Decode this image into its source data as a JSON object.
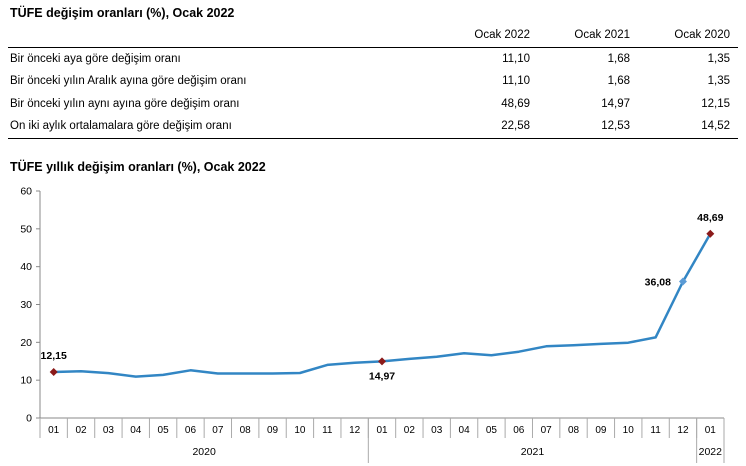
{
  "table": {
    "title": "TÜFE değişim oranları (%), Ocak 2022",
    "columns": [
      "Ocak 2022",
      "Ocak 2021",
      "Ocak 2020"
    ],
    "rows": [
      {
        "label": "Bir önceki aya göre değişim oranı",
        "values": [
          "11,10",
          "1,68",
          "1,35"
        ]
      },
      {
        "label": "Bir önceki yılın Aralık ayına göre değişim oranı",
        "values": [
          "11,10",
          "1,68",
          "1,35"
        ]
      },
      {
        "label": "Bir önceki yılın aynı ayına göre değişim oranı",
        "values": [
          "48,69",
          "14,97",
          "12,15"
        ]
      },
      {
        "label": "On iki aylık ortalamalara göre değişim oranı",
        "values": [
          "22,58",
          "12,53",
          "14,52"
        ]
      }
    ]
  },
  "chart_data": {
    "type": "line",
    "title": "TÜFE yıllık değişim oranları (%), Ocak 2022",
    "ylim": [
      0,
      60
    ],
    "yticks": [
      0,
      10,
      20,
      30,
      40,
      50,
      60
    ],
    "categories": [
      "01",
      "02",
      "03",
      "04",
      "05",
      "06",
      "07",
      "08",
      "09",
      "10",
      "11",
      "12",
      "01",
      "02",
      "03",
      "04",
      "05",
      "06",
      "07",
      "08",
      "09",
      "10",
      "11",
      "12",
      "01"
    ],
    "groups": [
      {
        "label": "2020",
        "count": 12
      },
      {
        "label": "2021",
        "count": 12
      },
      {
        "label": "2022",
        "count": 1
      }
    ],
    "series": [
      {
        "name": "TÜFE yıllık değişim",
        "color": "#3286c4",
        "values": [
          12.15,
          12.37,
          11.86,
          10.94,
          11.39,
          12.62,
          11.76,
          11.77,
          11.75,
          11.89,
          14.03,
          14.6,
          14.97,
          15.61,
          16.19,
          17.14,
          16.59,
          17.53,
          18.95,
          19.25,
          19.58,
          19.89,
          21.31,
          36.08,
          48.69
        ]
      }
    ],
    "annotations": [
      {
        "index": 0,
        "text": "12,15",
        "marker": "diamond",
        "marker_color": "#8b1a1a",
        "label_pos": "above"
      },
      {
        "index": 12,
        "text": "14,97",
        "marker": "diamond",
        "marker_color": "#8b1a1a",
        "label_pos": "below"
      },
      {
        "index": 23,
        "text": "36,08",
        "marker": "diamond",
        "marker_color": "#5b9bd5",
        "label_pos": "left"
      },
      {
        "index": 24,
        "text": "48,69",
        "marker": "diamond",
        "marker_color": "#8b1a1a",
        "label_pos": "above"
      }
    ]
  }
}
